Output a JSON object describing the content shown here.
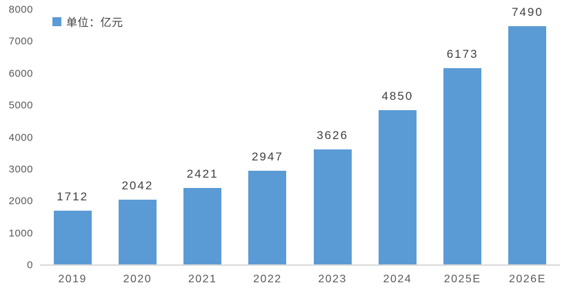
{
  "legend": {
    "label": "单位：亿元",
    "swatch_color": "#5B9BD5",
    "position": "top-left"
  },
  "chart_data": {
    "type": "bar",
    "categories": [
      "2019",
      "2020",
      "2021",
      "2022",
      "2023",
      "2024",
      "2025E",
      "2026E"
    ],
    "values": [
      1712,
      2042,
      2421,
      2947,
      3626,
      4850,
      6173,
      7490
    ],
    "series_name": "单位：亿元",
    "title": "",
    "xlabel": "",
    "ylabel": "",
    "ylim": [
      0,
      8000
    ],
    "yticks": [
      0,
      1000,
      2000,
      3000,
      4000,
      5000,
      6000,
      7000,
      8000
    ],
    "grid": false,
    "data_labels": true,
    "legend_position": "top-left",
    "bar_color": "#5B9BD5"
  },
  "colors": {
    "bar": "#5B9BD5",
    "axis_line": "#D9D9D9",
    "y_tick_label": "#595959",
    "x_tick_label": "#595959",
    "value_label": "#404040",
    "background": "#FFFFFF"
  }
}
